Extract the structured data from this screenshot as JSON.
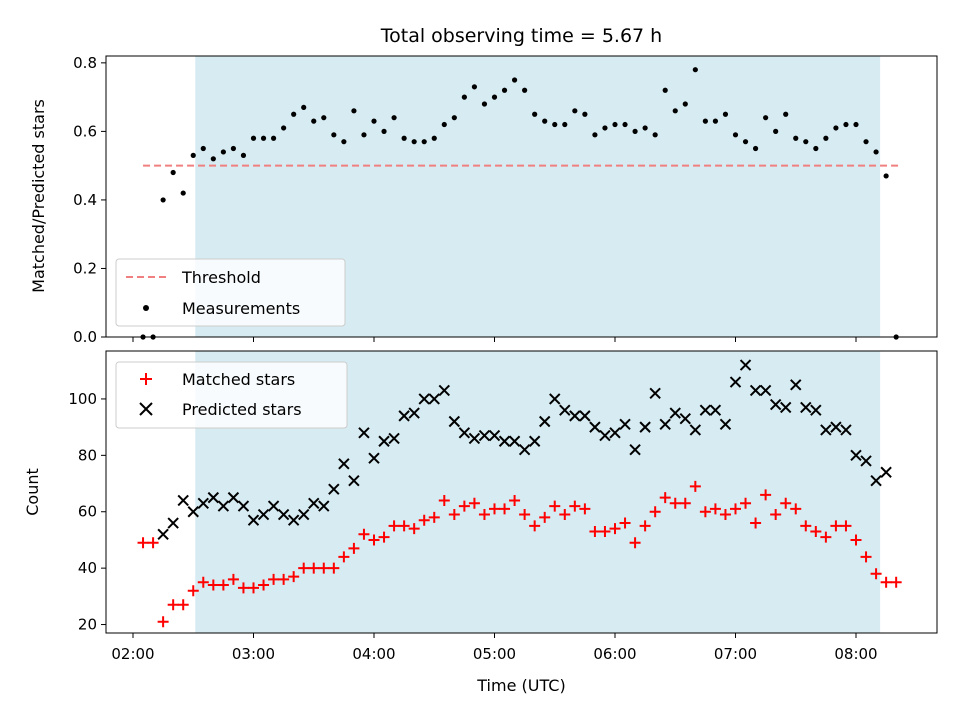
{
  "chart_data": [
    {
      "type": "scatter",
      "title": "Total observing time = 5.67 h",
      "xlabel": "",
      "ylabel": "Matched/Predicted stars",
      "ylim": [
        0,
        0.82
      ],
      "yticks": [
        "0.0",
        "0.2",
        "0.4",
        "0.6",
        "0.8"
      ],
      "shaded_interval": [
        "02:31",
        "08:12"
      ],
      "legend_position": "lower-left",
      "series": [
        {
          "name": "Threshold",
          "style": "dashed-line",
          "color": "#f08080",
          "x": [
            "02:05",
            "08:22"
          ],
          "y": [
            0.5,
            0.5
          ]
        },
        {
          "name": "Measurements",
          "style": "dot",
          "color": "#000000",
          "x": [
            "02:05",
            "02:10",
            "02:15",
            "02:20",
            "02:25",
            "02:30",
            "02:35",
            "02:40",
            "02:45",
            "02:50",
            "02:55",
            "03:00",
            "03:05",
            "03:10",
            "03:15",
            "03:20",
            "03:25",
            "03:30",
            "03:35",
            "03:40",
            "03:45",
            "03:50",
            "03:55",
            "04:00",
            "04:05",
            "04:10",
            "04:15",
            "04:20",
            "04:25",
            "04:30",
            "04:35",
            "04:40",
            "04:45",
            "04:50",
            "04:55",
            "05:00",
            "05:05",
            "05:10",
            "05:15",
            "05:20",
            "05:25",
            "05:30",
            "05:35",
            "05:40",
            "05:45",
            "05:50",
            "05:55",
            "06:00",
            "06:05",
            "06:10",
            "06:15",
            "06:20",
            "06:25",
            "06:30",
            "06:35",
            "06:40",
            "06:45",
            "06:50",
            "06:55",
            "07:00",
            "07:05",
            "07:10",
            "07:15",
            "07:20",
            "07:25",
            "07:30",
            "07:35",
            "07:40",
            "07:45",
            "07:50",
            "07:55",
            "08:00",
            "08:05",
            "08:10",
            "08:15",
            "08:20"
          ],
          "y": [
            0.0,
            0.0,
            0.4,
            0.48,
            0.42,
            0.53,
            0.55,
            0.52,
            0.54,
            0.55,
            0.53,
            0.58,
            0.58,
            0.58,
            0.61,
            0.65,
            0.67,
            0.63,
            0.64,
            0.59,
            0.57,
            0.66,
            0.59,
            0.63,
            0.6,
            0.64,
            0.58,
            0.57,
            0.57,
            0.58,
            0.62,
            0.64,
            0.7,
            0.73,
            0.68,
            0.7,
            0.72,
            0.75,
            0.72,
            0.65,
            0.63,
            0.62,
            0.62,
            0.66,
            0.65,
            0.59,
            0.61,
            0.62,
            0.62,
            0.6,
            0.61,
            0.59,
            0.72,
            0.66,
            0.68,
            0.78,
            0.63,
            0.63,
            0.65,
            0.59,
            0.57,
            0.55,
            0.64,
            0.6,
            0.65,
            0.58,
            0.57,
            0.55,
            0.58,
            0.61,
            0.62,
            0.62,
            0.57,
            0.54,
            0.47,
            0.0
          ]
        }
      ]
    },
    {
      "type": "scatter",
      "title": "",
      "xlabel": "Time (UTC)",
      "ylabel": "Count",
      "ylim": [
        17,
        117
      ],
      "yticks": [
        "20",
        "40",
        "60",
        "80",
        "100"
      ],
      "xticks": [
        "02:00",
        "03:00",
        "04:00",
        "05:00",
        "06:00",
        "07:00",
        "08:00"
      ],
      "shaded_interval": [
        "02:31",
        "08:12"
      ],
      "legend_position": "top-left",
      "series": [
        {
          "name": "Matched stars",
          "marker": "plus",
          "color": "#ff0000",
          "x": [
            "02:05",
            "02:10",
            "02:15",
            "02:20",
            "02:25",
            "02:30",
            "02:35",
            "02:40",
            "02:45",
            "02:50",
            "02:55",
            "03:00",
            "03:05",
            "03:10",
            "03:15",
            "03:20",
            "03:25",
            "03:30",
            "03:35",
            "03:40",
            "03:45",
            "03:50",
            "03:55",
            "04:00",
            "04:05",
            "04:10",
            "04:15",
            "04:20",
            "04:25",
            "04:30",
            "04:35",
            "04:40",
            "04:45",
            "04:50",
            "04:55",
            "05:00",
            "05:05",
            "05:10",
            "05:15",
            "05:20",
            "05:25",
            "05:30",
            "05:35",
            "05:40",
            "05:45",
            "05:50",
            "05:55",
            "06:00",
            "06:05",
            "06:10",
            "06:15",
            "06:20",
            "06:25",
            "06:30",
            "06:35",
            "06:40",
            "06:45",
            "06:50",
            "06:55",
            "07:00",
            "07:05",
            "07:10",
            "07:15",
            "07:20",
            "07:25",
            "07:30",
            "07:35",
            "07:40",
            "07:45",
            "07:50",
            "07:55",
            "08:00",
            "08:05",
            "08:10",
            "08:15",
            "08:20"
          ],
          "y": [
            49,
            49,
            21,
            27,
            27,
            32,
            35,
            34,
            34,
            36,
            33,
            33,
            34,
            36,
            36,
            37,
            40,
            40,
            40,
            40,
            44,
            47,
            52,
            50,
            51,
            55,
            55,
            54,
            57,
            58,
            64,
            59,
            62,
            63,
            59,
            61,
            61,
            64,
            59,
            55,
            58,
            62,
            59,
            62,
            61,
            53,
            53,
            54,
            56,
            49,
            55,
            60,
            65,
            63,
            63,
            69,
            60,
            61,
            59,
            61,
            63,
            56,
            66,
            59,
            63,
            61,
            55,
            53,
            51,
            55,
            55,
            50,
            44,
            38,
            35,
            35
          ]
        },
        {
          "name": "Predicted stars",
          "marker": "x",
          "color": "#000000",
          "x": [
            "02:15",
            "02:20",
            "02:25",
            "02:30",
            "02:35",
            "02:40",
            "02:45",
            "02:50",
            "02:55",
            "03:00",
            "03:05",
            "03:10",
            "03:15",
            "03:20",
            "03:25",
            "03:30",
            "03:35",
            "03:40",
            "03:45",
            "03:50",
            "03:55",
            "04:00",
            "04:05",
            "04:10",
            "04:15",
            "04:20",
            "04:25",
            "04:30",
            "04:35",
            "04:40",
            "04:45",
            "04:50",
            "04:55",
            "05:00",
            "05:05",
            "05:10",
            "05:15",
            "05:20",
            "05:25",
            "05:30",
            "05:35",
            "05:40",
            "05:45",
            "05:50",
            "05:55",
            "06:00",
            "06:05",
            "06:10",
            "06:15",
            "06:20",
            "06:25",
            "06:30",
            "06:35",
            "06:40",
            "06:45",
            "06:50",
            "06:55",
            "07:00",
            "07:05",
            "07:10",
            "07:15",
            "07:20",
            "07:25",
            "07:30",
            "07:35",
            "07:40",
            "07:45",
            "07:50",
            "07:55",
            "08:00",
            "08:05",
            "08:10",
            "08:15"
          ],
          "y": [
            52,
            56,
            64,
            60,
            63,
            65,
            62,
            65,
            62,
            57,
            59,
            62,
            59,
            57,
            59,
            63,
            62,
            68,
            77,
            71,
            88,
            79,
            85,
            86,
            94,
            95,
            100,
            100,
            103,
            92,
            88,
            86,
            87,
            87,
            85,
            85,
            82,
            85,
            92,
            100,
            96,
            94,
            94,
            90,
            87,
            88,
            91,
            82,
            90,
            102,
            91,
            95,
            93,
            89,
            96,
            96,
            91,
            106,
            112,
            103,
            103,
            98,
            97,
            105,
            97,
            96,
            89,
            90,
            89,
            80,
            78,
            71,
            74
          ]
        }
      ]
    }
  ]
}
